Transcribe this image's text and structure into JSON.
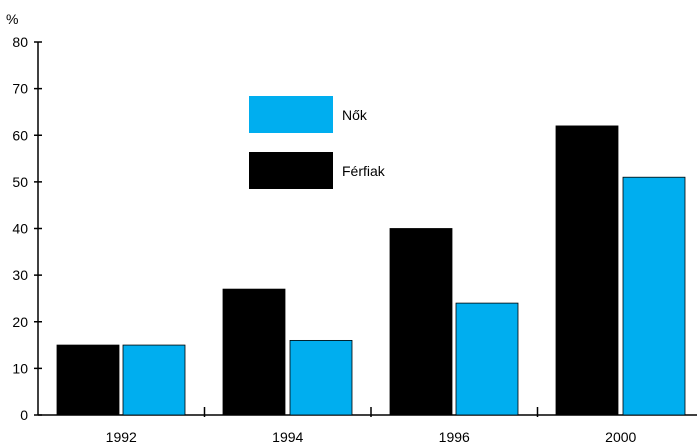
{
  "chart_data": {
    "type": "bar",
    "ylabel": "%",
    "ylim": [
      0,
      80
    ],
    "yticks": [
      0,
      10,
      20,
      30,
      40,
      50,
      60,
      70,
      80
    ],
    "categories": [
      "1992",
      "1994",
      "1996",
      "2000"
    ],
    "series": [
      {
        "name": "Férfiak",
        "values": [
          15,
          27,
          40,
          62
        ],
        "color": "#000000"
      },
      {
        "name": "Nők",
        "values": [
          15,
          16,
          24,
          51
        ],
        "color": "#00aeef"
      }
    ],
    "legend_order": [
      "Nők",
      "Férfiak"
    ],
    "legend_position": "upper-center",
    "grid": false
  }
}
